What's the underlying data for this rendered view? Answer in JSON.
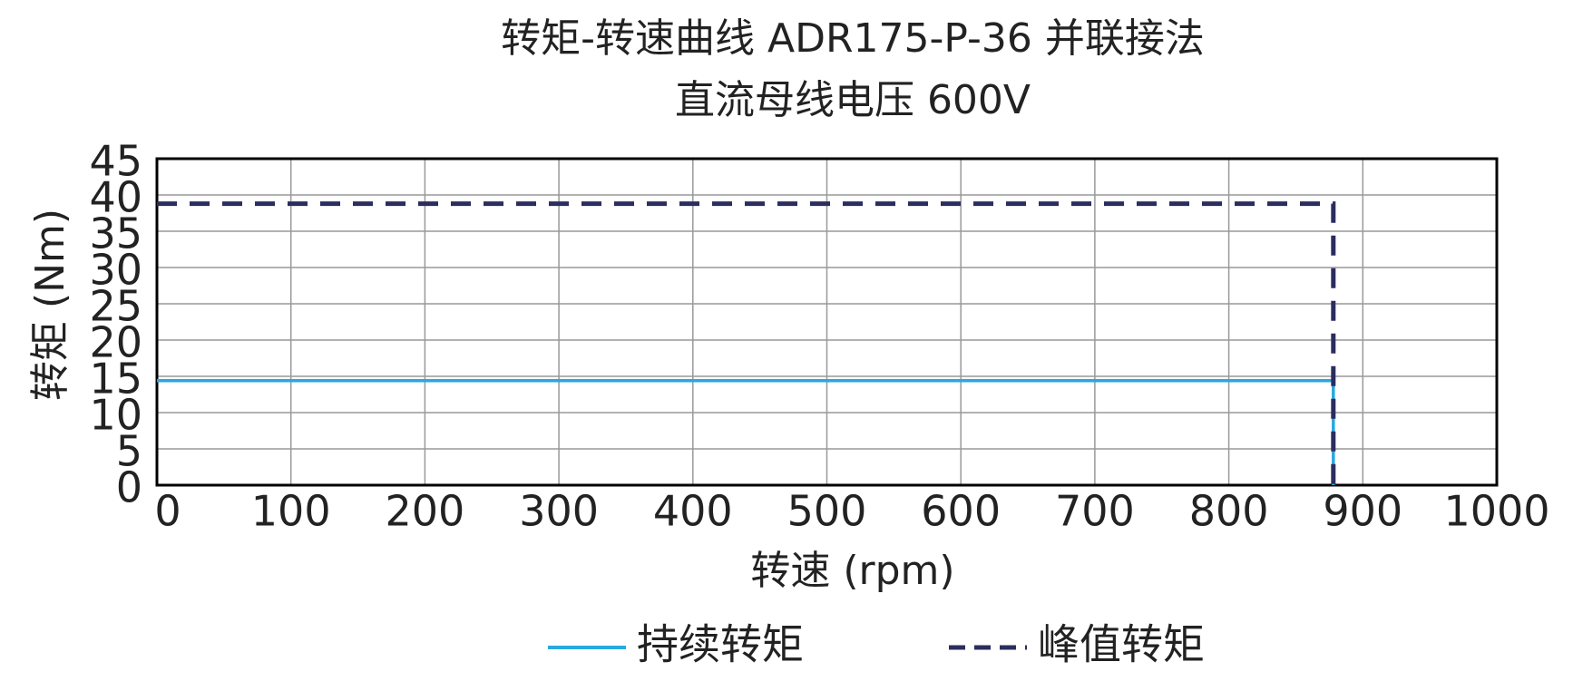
{
  "chart_data": {
    "type": "line",
    "title": "转矩-转速曲线 ADR175-P-36 并联接法",
    "subtitle": "直流母线电压 600V",
    "x_label": "转速 (rpm)",
    "y_label": "转矩 (Nm)",
    "x": [
      0,
      878,
      878
    ],
    "series": [
      {
        "name": "持续转矩",
        "color": "#29a8df",
        "dash": false,
        "values": [
          14.4,
          14.4,
          0
        ]
      },
      {
        "name": "峰值转矩",
        "color": "#2b2d5e",
        "dash": true,
        "values": [
          38.8,
          38.8,
          0
        ]
      }
    ],
    "xlim": [
      0,
      1000
    ],
    "xticks": [
      0,
      100,
      200,
      300,
      400,
      500,
      600,
      700,
      800,
      900,
      1000
    ],
    "ylim": [
      0,
      45
    ],
    "yticks": [
      0,
      5,
      10,
      15,
      20,
      25,
      30,
      35,
      40,
      45
    ],
    "grid": true,
    "legend": "bottom"
  }
}
